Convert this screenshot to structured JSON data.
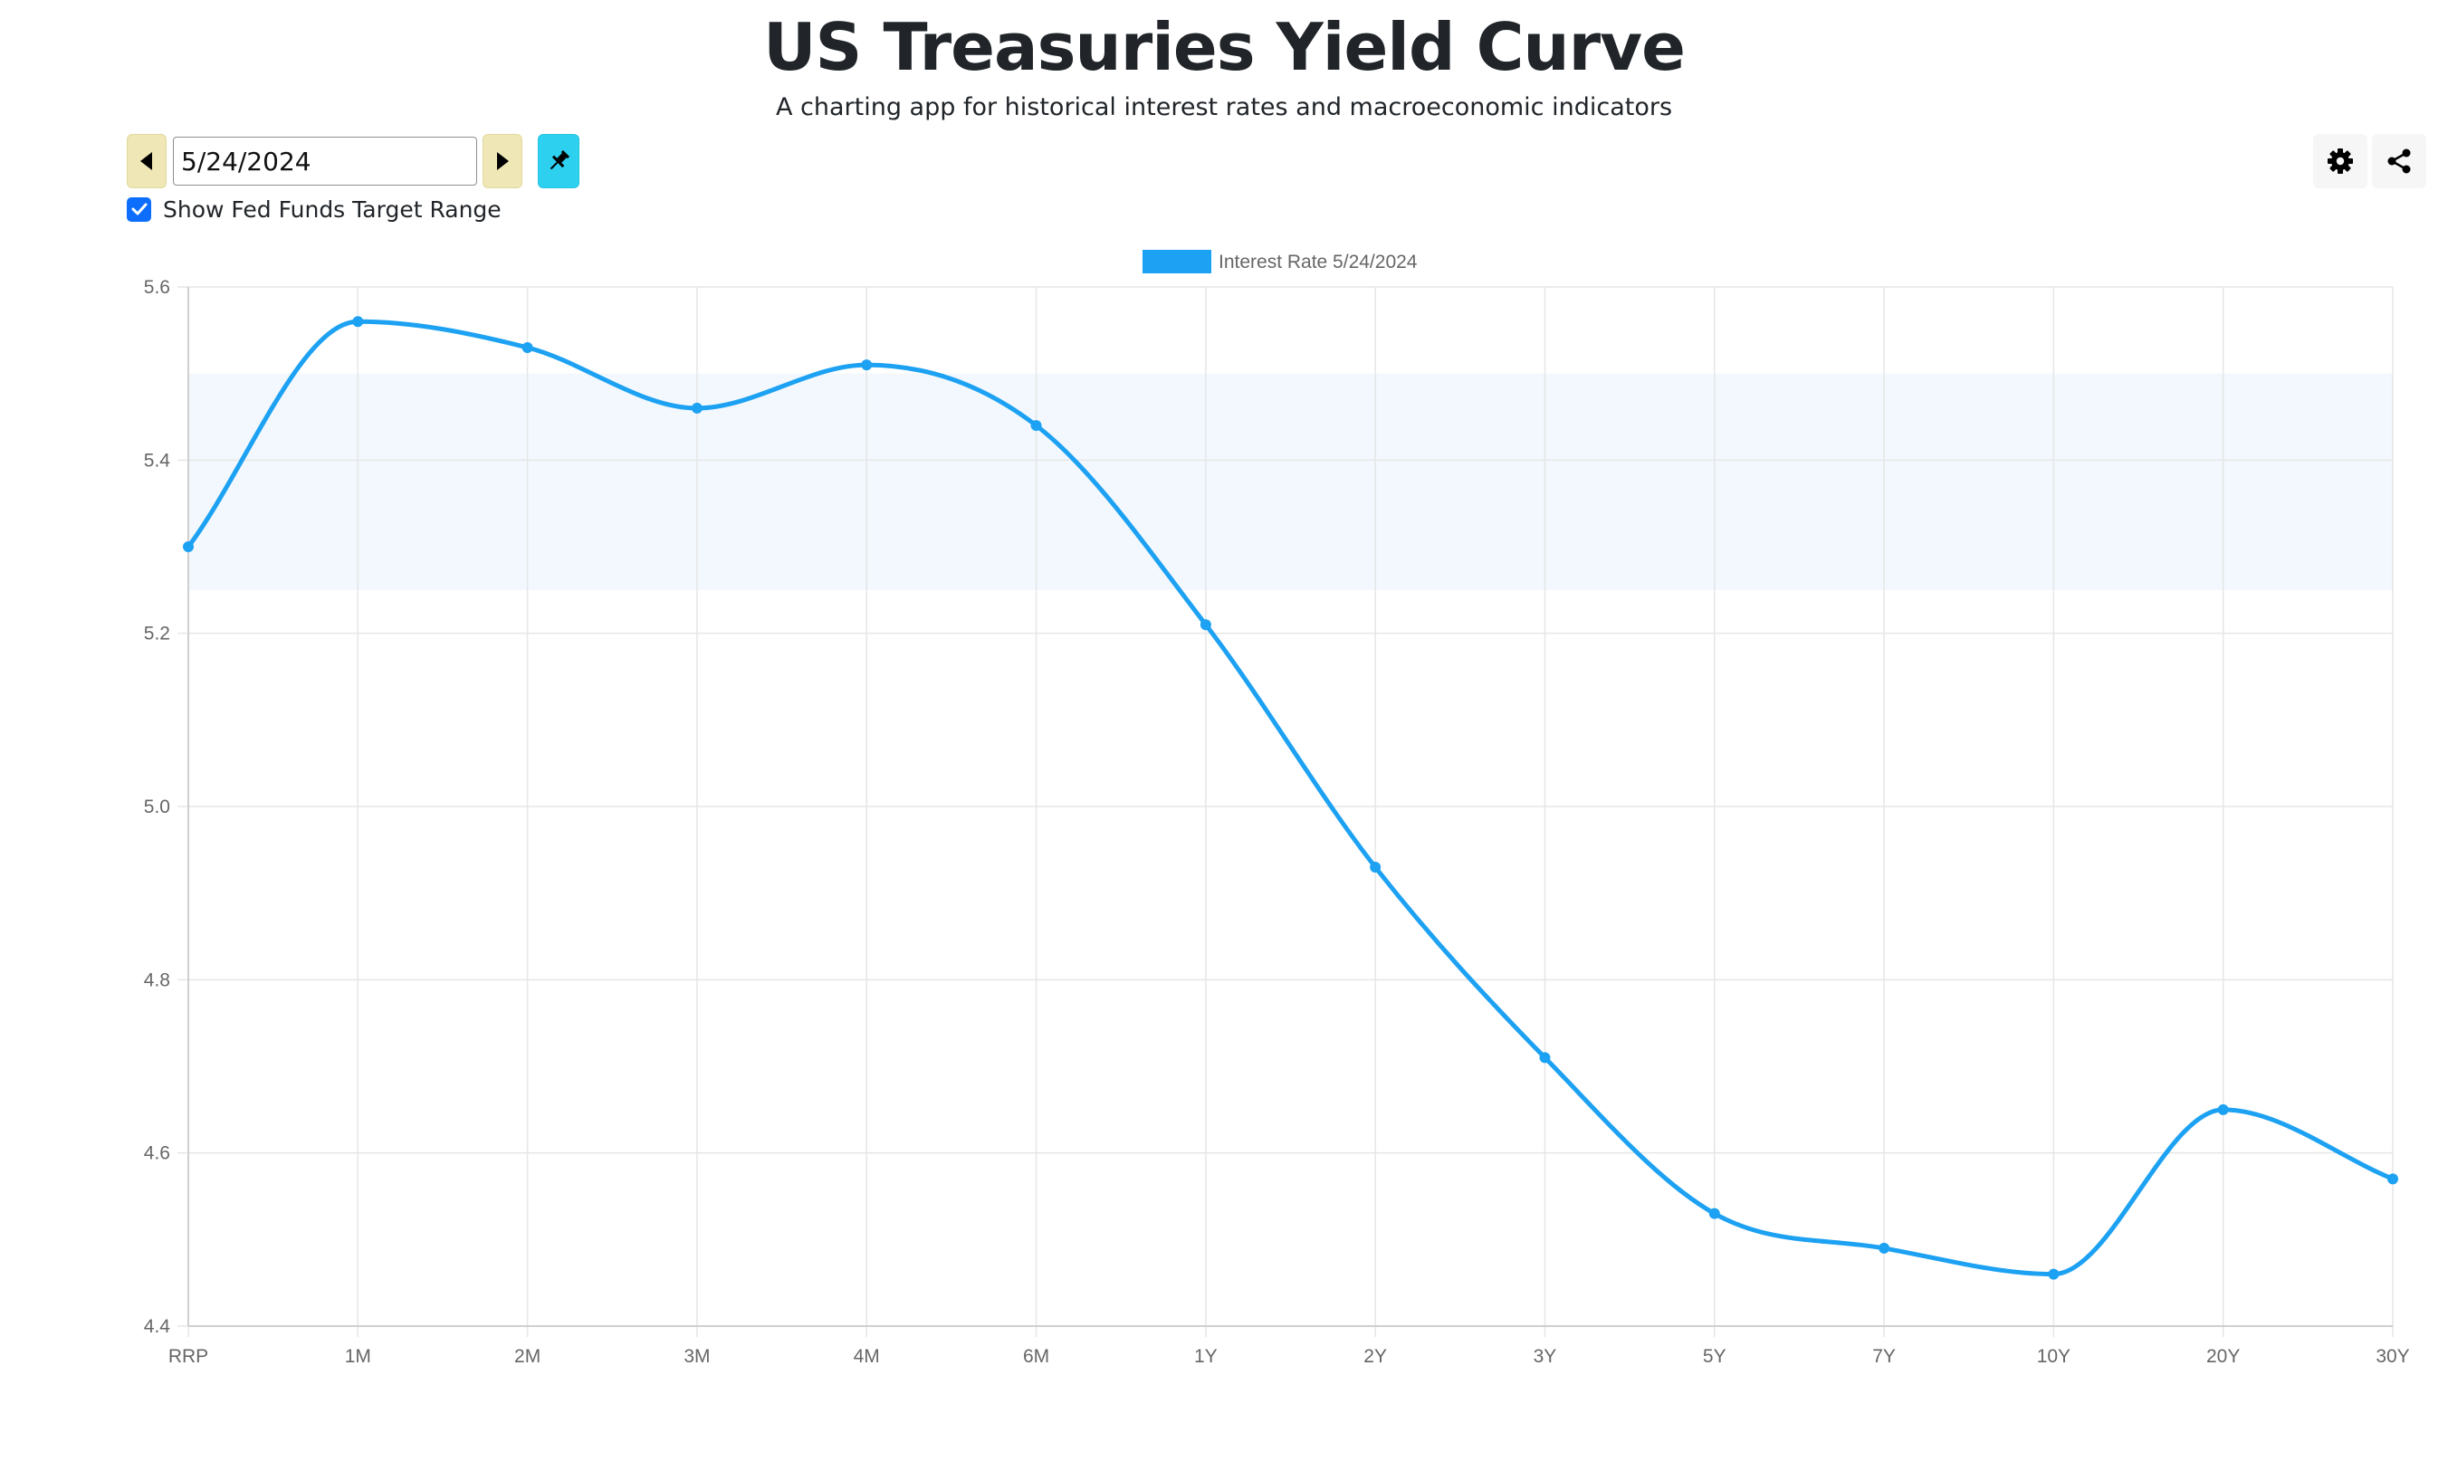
{
  "header": {
    "title": "US Treasuries Yield Curve",
    "subtitle": "A charting app for historical interest rates and macroeconomic indicators"
  },
  "controls": {
    "date_value": "5/24/2024",
    "show_fed_funds_label": "Show Fed Funds Target Range",
    "show_fed_funds_checked": true,
    "prev_icon": "caret-left-icon",
    "next_icon": "caret-right-icon",
    "pin_icon": "pin-icon",
    "settings_icon": "gear-icon",
    "share_icon": "share-icon"
  },
  "colors": {
    "line": "#1da1f2",
    "fed_band": "#e8f2fd",
    "grid": "#e6e6e6",
    "nav_button": "#efe7b5",
    "pin_button": "#2ed0ef",
    "checkbox": "#0d6efd"
  },
  "chart_data": {
    "type": "line",
    "title": "",
    "legend": "Interest Rate 5/24/2024",
    "legend_position": "top",
    "categories": [
      "RRP",
      "1M",
      "2M",
      "3M",
      "4M",
      "6M",
      "1Y",
      "2Y",
      "3Y",
      "5Y",
      "7Y",
      "10Y",
      "20Y",
      "30Y"
    ],
    "series": [
      {
        "name": "Interest Rate 5/24/2024",
        "values": [
          5.3,
          5.56,
          5.53,
          5.46,
          5.51,
          5.44,
          5.21,
          4.93,
          4.71,
          4.53,
          4.49,
          4.46,
          4.65,
          4.57
        ]
      }
    ],
    "fed_funds_target_range": [
      5.25,
      5.5
    ],
    "ylim": [
      4.4,
      5.6
    ],
    "yticks": [
      "5.6",
      "5.4",
      "5.2",
      "5.0",
      "4.8",
      "4.6",
      "4.4"
    ],
    "ytick_values": [
      5.6,
      5.4,
      5.2,
      5.0,
      4.8,
      4.6,
      4.4
    ],
    "grid": true,
    "xlabel": "",
    "ylabel": ""
  }
}
